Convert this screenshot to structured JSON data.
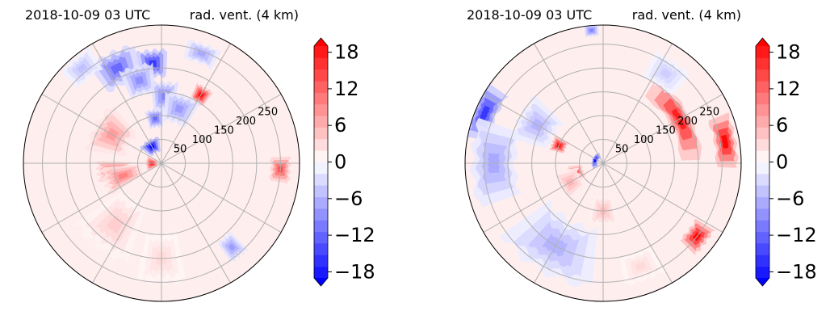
{
  "colors": {
    "title_time": "#0000ff",
    "positive": "#ff0000",
    "negative": "#0000ff",
    "neutral": "#ffffff",
    "grid": "#b0b0b0"
  },
  "chart_data": [
    {
      "type": "polar-contour",
      "title_left": "2018-10-09 03 UTC",
      "title_right": "rad. vent. (4 km)",
      "radial_ticks": [
        "50",
        "100",
        "150",
        "200",
        "250"
      ],
      "radial_values": [
        50,
        100,
        150,
        200,
        250
      ],
      "r_max": 290,
      "azimuth_lines_deg": [
        0,
        30,
        60,
        90,
        120,
        150,
        180,
        210,
        240,
        270,
        300,
        330
      ],
      "colorbar": {
        "ticks": [
          "18",
          "12",
          "6",
          "0",
          "−6",
          "−12",
          "−18"
        ],
        "tick_values": [
          18,
          12,
          6,
          0,
          -6,
          -12,
          -18
        ],
        "min": -20,
        "max": 20,
        "extend": "both"
      },
      "features": [
        {
          "az": 355,
          "r": 210,
          "value": -16,
          "spread_az": 8,
          "spread_r": 28
        },
        {
          "az": 335,
          "r": 220,
          "value": -12,
          "spread_az": 12,
          "spread_r": 35
        },
        {
          "az": 345,
          "r": 180,
          "value": -9,
          "spread_az": 10,
          "spread_r": 30
        },
        {
          "az": 352,
          "r": 95,
          "value": -12,
          "spread_az": 10,
          "spread_r": 18
        },
        {
          "az": 2,
          "r": 140,
          "value": -10,
          "spread_az": 10,
          "spread_r": 30
        },
        {
          "az": 20,
          "r": 245,
          "value": -7,
          "spread_az": 8,
          "spread_r": 20
        },
        {
          "az": 330,
          "r": 40,
          "value": -20,
          "spread_az": 25,
          "spread_r": 15
        },
        {
          "az": 300,
          "r": 120,
          "value": 8,
          "spread_az": 20,
          "spread_r": 40
        },
        {
          "az": 30,
          "r": 165,
          "value": 20,
          "spread_az": 6,
          "spread_r": 18
        },
        {
          "az": 18,
          "r": 120,
          "value": -8,
          "spread_az": 15,
          "spread_r": 30
        },
        {
          "az": 268,
          "r": 20,
          "value": 18,
          "spread_az": 30,
          "spread_r": 12
        },
        {
          "az": 262,
          "r": 100,
          "value": 12,
          "spread_az": 10,
          "spread_r": 35
        },
        {
          "az": 252,
          "r": 85,
          "value": 10,
          "spread_az": 14,
          "spread_r": 40
        },
        {
          "az": 93,
          "r": 250,
          "value": 14,
          "spread_az": 6,
          "spread_r": 20
        },
        {
          "az": 140,
          "r": 230,
          "value": -8,
          "spread_az": 5,
          "spread_r": 25
        },
        {
          "az": 217,
          "r": 160,
          "value": 4,
          "spread_az": 18,
          "spread_r": 60
        },
        {
          "az": 180,
          "r": 200,
          "value": 3,
          "spread_az": 12,
          "spread_r": 50
        },
        {
          "az": 320,
          "r": 260,
          "value": -5,
          "spread_az": 8,
          "spread_r": 25
        }
      ]
    },
    {
      "type": "polar-contour",
      "title_left": "2018-10-09 03 UTC",
      "title_right": "rad. vent. (4 km)",
      "radial_ticks": [
        "50",
        "100",
        "150",
        "200",
        "250"
      ],
      "radial_values": [
        50,
        100,
        150,
        200,
        250
      ],
      "r_max": 290,
      "azimuth_lines_deg": [
        0,
        30,
        60,
        90,
        120,
        150,
        180,
        210,
        240,
        270,
        300,
        330
      ],
      "colorbar": {
        "ticks": [
          "18",
          "12",
          "6",
          "0",
          "−6",
          "−12",
          "−18"
        ],
        "tick_values": [
          18,
          12,
          6,
          0,
          -6,
          -12,
          -18
        ],
        "min": -20,
        "max": 20,
        "extend": "both"
      },
      "features": [
        {
          "az": 60,
          "r": 185,
          "value": 18,
          "spread_az": 28,
          "spread_r": 22
        },
        {
          "az": 80,
          "r": 260,
          "value": 20,
          "spread_az": 12,
          "spread_r": 22
        },
        {
          "az": 128,
          "r": 250,
          "value": 20,
          "spread_az": 7,
          "spread_r": 22
        },
        {
          "az": 293,
          "r": 270,
          "value": -16,
          "spread_az": 12,
          "spread_r": 25
        },
        {
          "az": 270,
          "r": 230,
          "value": -7,
          "spread_az": 20,
          "spread_r": 45
        },
        {
          "az": 300,
          "r": 160,
          "value": -6,
          "spread_az": 15,
          "spread_r": 40
        },
        {
          "az": 292,
          "r": 100,
          "value": 20,
          "spread_az": 8,
          "spread_r": 15
        },
        {
          "az": 250,
          "r": 60,
          "value": 16,
          "spread_az": 15,
          "spread_r": 15
        },
        {
          "az": 290,
          "r": 18,
          "value": -20,
          "spread_az": 50,
          "spread_r": 6
        },
        {
          "az": 355,
          "r": 280,
          "value": -10,
          "spread_az": 3,
          "spread_r": 12
        },
        {
          "az": 210,
          "r": 200,
          "value": -6,
          "spread_az": 25,
          "spread_r": 60
        },
        {
          "az": 240,
          "r": 80,
          "value": 6,
          "spread_az": 20,
          "spread_r": 25
        },
        {
          "az": 180,
          "r": 100,
          "value": 5,
          "spread_az": 15,
          "spread_r": 30
        },
        {
          "az": 160,
          "r": 230,
          "value": 3,
          "spread_az": 10,
          "spread_r": 30
        },
        {
          "az": 35,
          "r": 230,
          "value": -4,
          "spread_az": 10,
          "spread_r": 30
        }
      ]
    }
  ]
}
